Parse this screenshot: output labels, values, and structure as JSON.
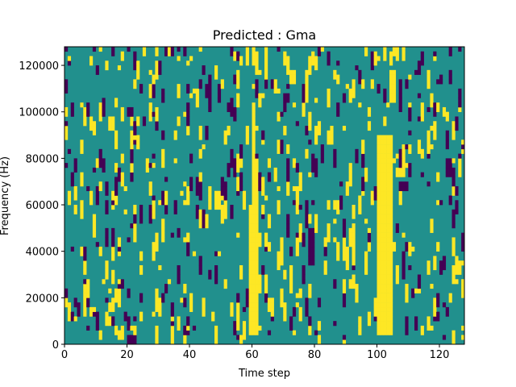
{
  "chart_data": {
    "type": "heatmap",
    "title": "Predicted : Gma",
    "xlabel": "Time step",
    "ylabel": "Frequency (Hz)",
    "xlim": [
      0,
      128
    ],
    "ylim": [
      0,
      128000
    ],
    "x_ticks": [
      0,
      20,
      40,
      60,
      80,
      100,
      120
    ],
    "y_ticks": [
      0,
      20000,
      40000,
      60000,
      80000,
      100000,
      120000
    ],
    "y_tick_labels": [
      "0",
      "20000",
      "40000",
      "60000",
      "80000",
      "100000",
      "120000"
    ],
    "grid": false,
    "rows": 64,
    "cols": 128,
    "cell_height_hz": 2000,
    "value_levels": [
      -1,
      0,
      1
    ],
    "colors": {
      "low": "#440154",
      "mid": "#21908d",
      "high": "#fde725"
    },
    "high_regions": [
      {
        "t": [
          59,
          62
        ],
        "f": [
          4000,
          60000
        ]
      },
      {
        "t": [
          60,
          62
        ],
        "f": [
          60000,
          80000
        ]
      },
      {
        "t": [
          60,
          61
        ],
        "f": [
          80000,
          104000
        ]
      },
      {
        "t": [
          100,
          105
        ],
        "f": [
          4000,
          90000
        ]
      },
      {
        "t": [
          104,
          106
        ],
        "f": [
          104000,
          116000
        ]
      }
    ],
    "low_regions": [
      {
        "t": [
          107,
          110
        ],
        "f": [
          66000,
          70000
        ]
      },
      {
        "t": [
          78,
          80
        ],
        "f": [
          34000,
          50000
        ]
      },
      {
        "t": [
          20,
          23
        ],
        "f": [
          0,
          4000
        ]
      }
    ],
    "random_density": {
      "high": 0.045,
      "low": 0.035
    }
  }
}
